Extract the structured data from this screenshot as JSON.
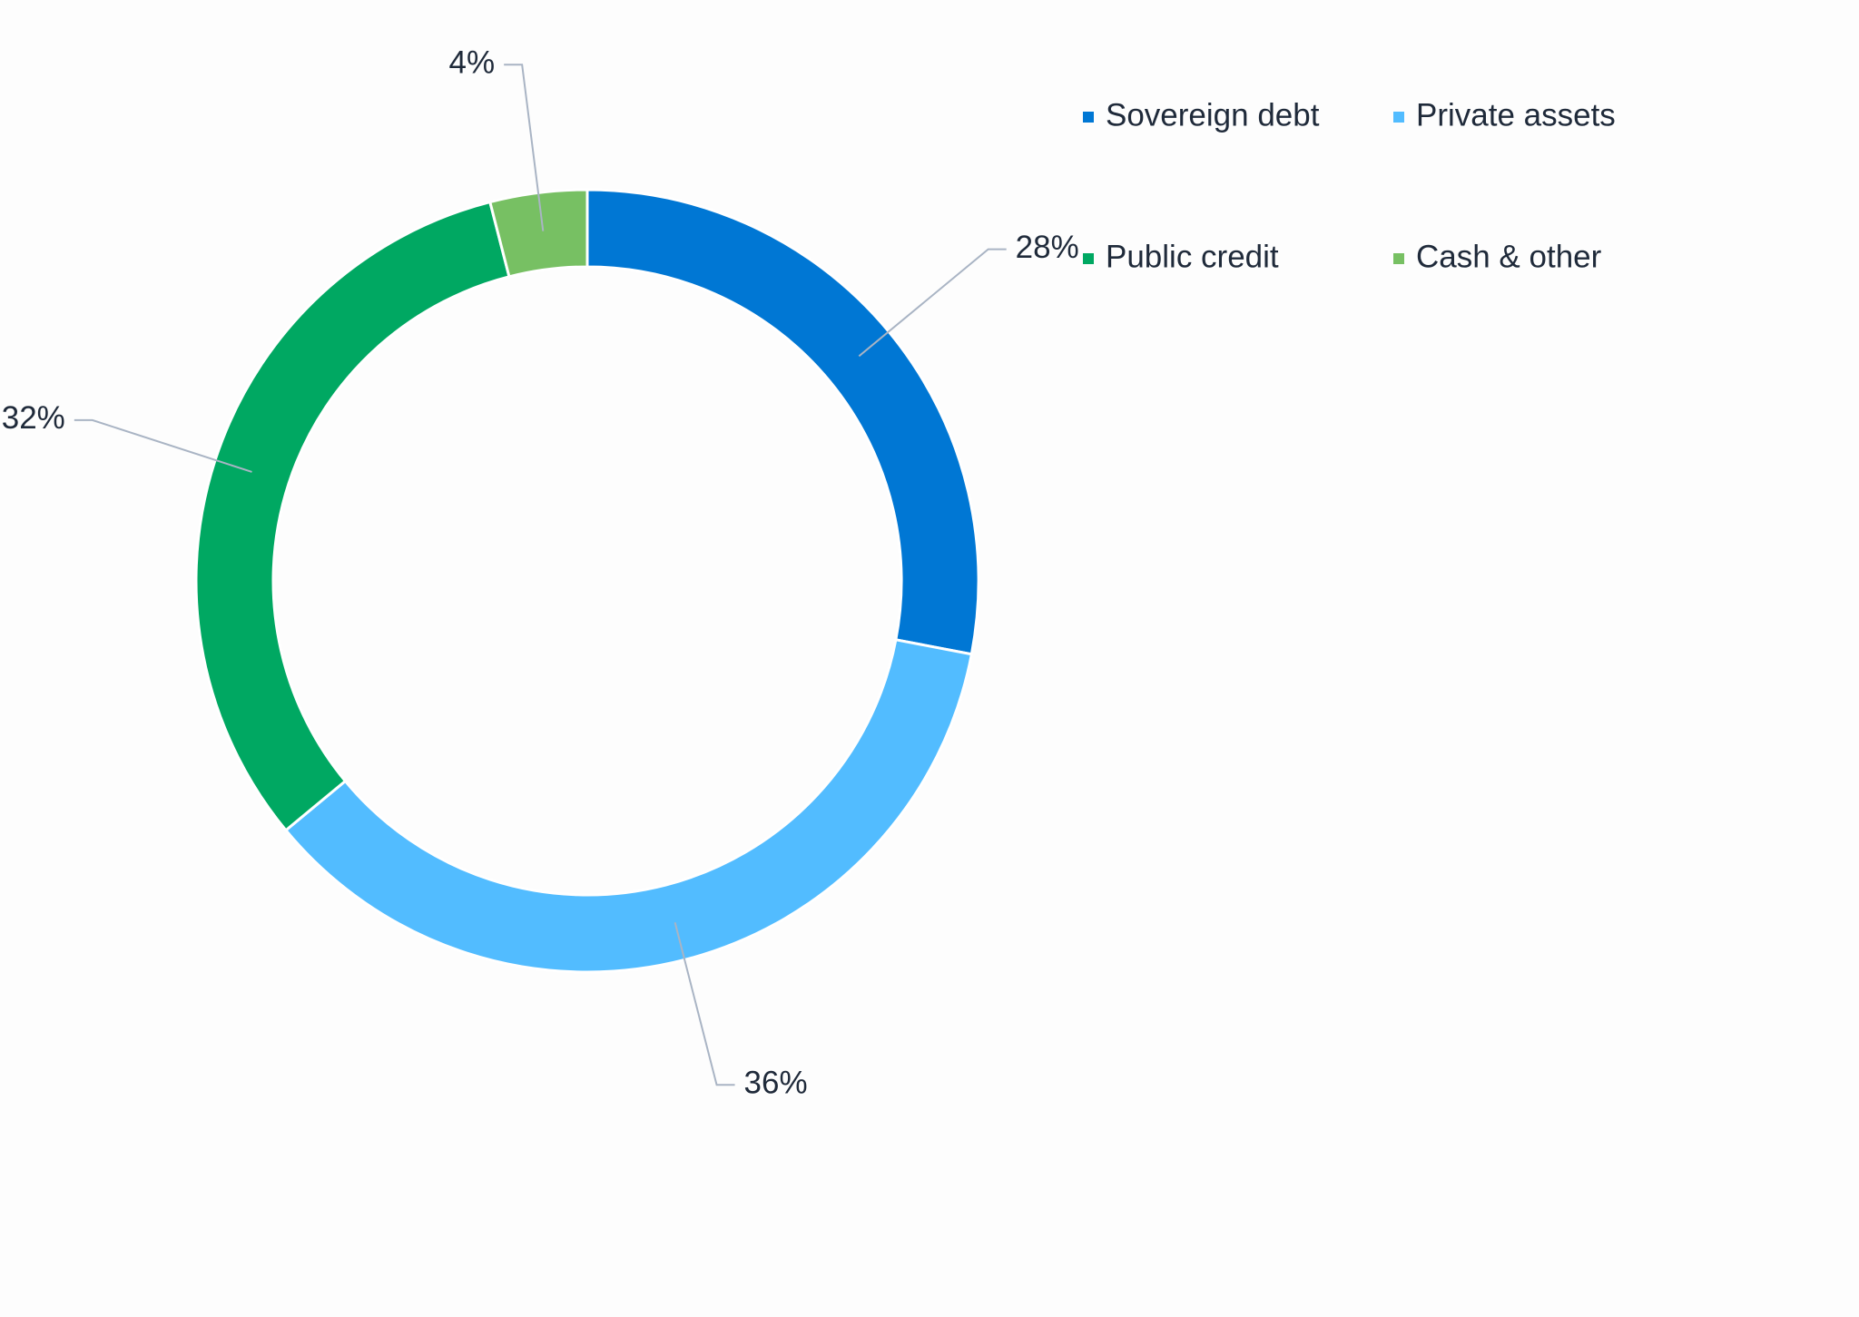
{
  "chart_data": {
    "type": "donut",
    "categories": [
      "Sovereign debt",
      "Private assets",
      "Public credit",
      "Cash & other"
    ],
    "values": [
      28,
      36,
      32,
      4
    ],
    "value_labels": [
      "28%",
      "36%",
      "32%",
      "4%"
    ],
    "colors": [
      "#0077d4",
      "#52bcff",
      "#00a862",
      "#77c063"
    ],
    "legend": "top-right"
  }
}
